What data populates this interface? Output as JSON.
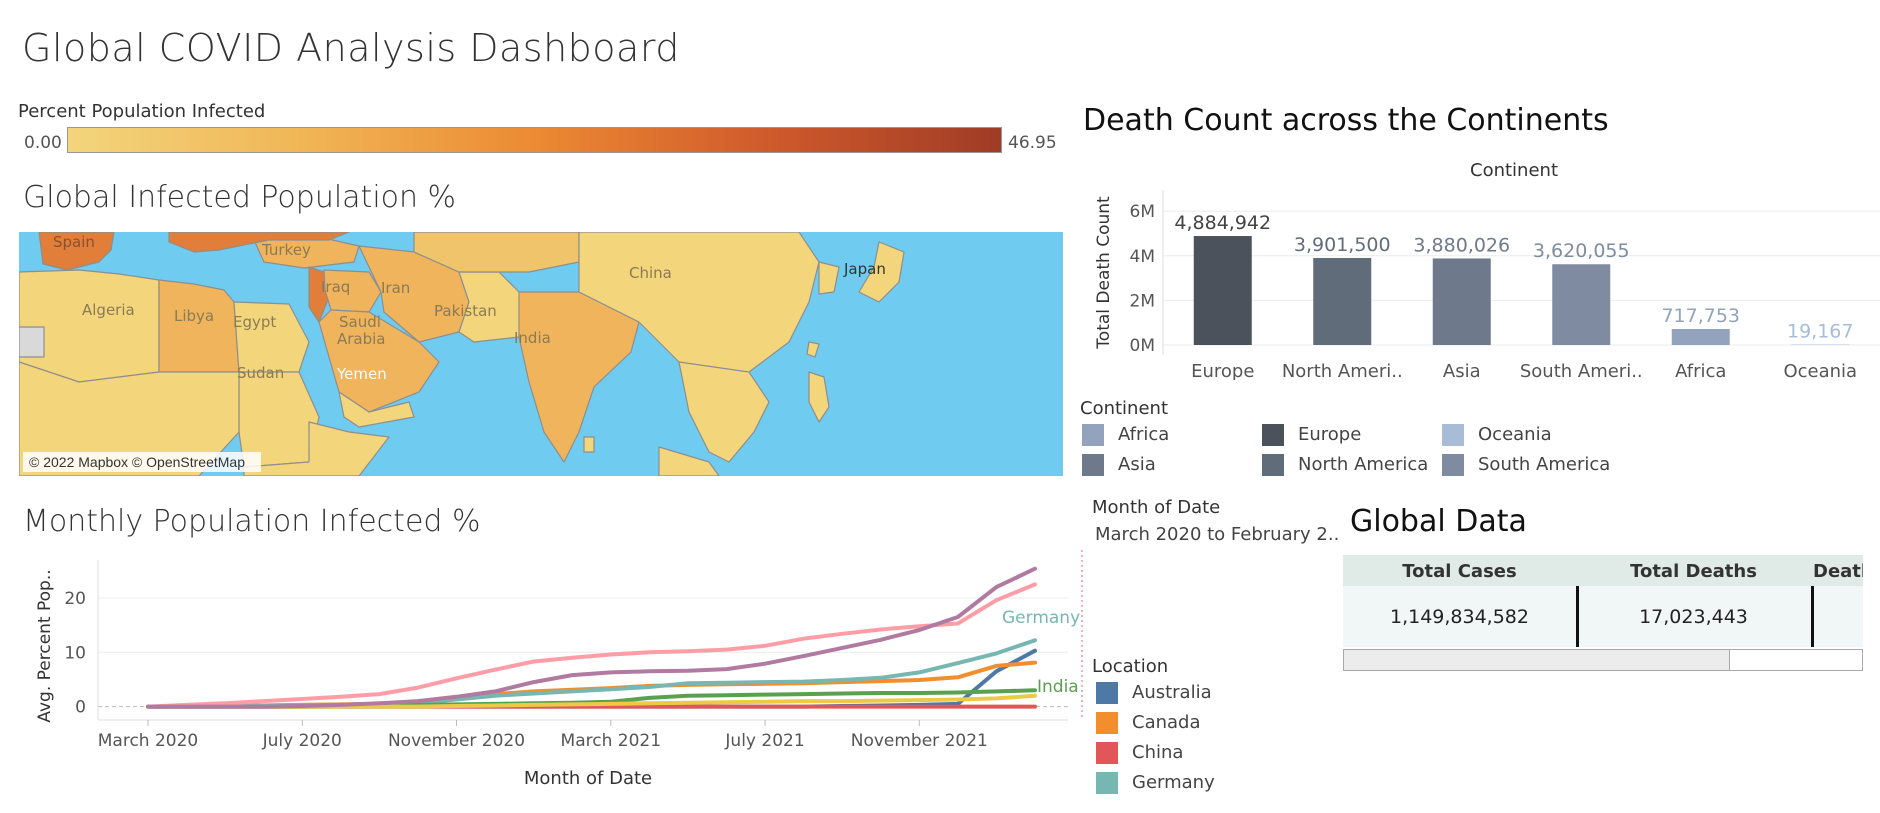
{
  "dashboard": {
    "title": "Global COVID Analysis Dashboard"
  },
  "color_legend": {
    "title": "Percent Population Infected",
    "min": "0.00",
    "max": "46.95",
    "colors": [
      "#f3d57c",
      "#f0b656",
      "#ec8a33",
      "#d05a2b",
      "#9f3c26"
    ]
  },
  "map": {
    "title": "Global Infected Population %",
    "attribution": "© 2022 Mapbox © OpenStreetMap",
    "labels": [
      "Spain",
      "Turkey",
      "Iraq",
      "Iran",
      "Algeria",
      "Libya",
      "Egypt",
      "Saudi",
      "Arabia",
      "Pakistan",
      "China",
      "Japan",
      "India",
      "Sudan",
      "Yemen"
    ],
    "colors": {
      "sea": "#6fcbef",
      "land_light": "#f3d67c",
      "land_mid": "#f0b45c",
      "land_dark": "#e07e3a",
      "border": "#9a9a9a"
    }
  },
  "bar_chart": {
    "title": "Death Count across the Continents",
    "header": "Continent",
    "ylabel": "Total Death Count",
    "value_labels": [
      "4,884,942",
      "3,901,500",
      "3,880,026",
      "3,620,055",
      "717,753",
      "19,167"
    ],
    "tick_labels": [
      "Europe",
      "North Ameri..",
      "Asia",
      "South Ameri..",
      "Africa",
      "Oceania"
    ],
    "y_ticks": [
      "0M",
      "2M",
      "4M",
      "6M"
    ],
    "colors": [
      "#4b525c",
      "#616c7b",
      "#6e7a8b",
      "#7f8ba0",
      "#93a3bd",
      "#a9bcd6"
    ]
  },
  "continent_legend": {
    "title": "Continent",
    "items": [
      {
        "label": "Africa",
        "color": "#93a3bd"
      },
      {
        "label": "Europe",
        "color": "#4b525c"
      },
      {
        "label": "Oceania",
        "color": "#a9bcd6"
      },
      {
        "label": "Asia",
        "color": "#6e7a8b"
      },
      {
        "label": "North America",
        "color": "#616c7b"
      },
      {
        "label": "South America",
        "color": "#7f8ba0"
      }
    ]
  },
  "line_chart": {
    "title": "Monthly Population Infected %",
    "xlabel": "Month of Date",
    "ylabel": "Avg. Percent Pop..",
    "x_ticks": [
      "March 2020",
      "July 2020",
      "November 2020",
      "March 2021",
      "July 2021",
      "November 2021"
    ],
    "y_ticks": [
      "0",
      "10",
      "20"
    ],
    "end_labels": [
      "Germany",
      "India"
    ]
  },
  "filter": {
    "title": "Month of Date",
    "value": "March 2020 to February 2.."
  },
  "location_legend": {
    "title": "Location",
    "items": [
      {
        "label": "Australia",
        "color": "#4e79a7"
      },
      {
        "label": "Canada",
        "color": "#f28e2b"
      },
      {
        "label": "China",
        "color": "#e15759"
      },
      {
        "label": "Germany",
        "color": "#76b7b2"
      }
    ]
  },
  "global_data": {
    "title": "Global Data",
    "headers": [
      "Total Cases",
      "Total Deaths",
      "Death"
    ],
    "values": [
      "1,149,834,582",
      "17,023,443",
      ""
    ]
  },
  "chart_data": [
    {
      "type": "bar",
      "title": "Death Count across the Continents",
      "xlabel": "Continent",
      "ylabel": "Total Death Count",
      "categories": [
        "Europe",
        "North America",
        "Asia",
        "South America",
        "Africa",
        "Oceania"
      ],
      "values": [
        4884942,
        3901500,
        3880026,
        3620055,
        717753,
        19167
      ],
      "ylim": [
        0,
        6500000
      ],
      "grid": true
    },
    {
      "type": "line",
      "title": "Monthly Population Infected %",
      "xlabel": "Month of Date",
      "ylabel": "Avg. Percent Pop..",
      "x": [
        "2020-03",
        "2020-04",
        "2020-05",
        "2020-06",
        "2020-07",
        "2020-08",
        "2020-09",
        "2020-10",
        "2020-11",
        "2020-12",
        "2021-01",
        "2021-02",
        "2021-03",
        "2021-04",
        "2021-05",
        "2021-06",
        "2021-07",
        "2021-08",
        "2021-09",
        "2021-10",
        "2021-11",
        "2021-12",
        "2022-01",
        "2022-02"
      ],
      "ylim": [
        -1,
        27
      ],
      "series": [
        {
          "name": "Australia",
          "color": "#4e79a7",
          "values": [
            0,
            0,
            0,
            0,
            0,
            0,
            0,
            0,
            0,
            0,
            0,
            0,
            0,
            0,
            0,
            0,
            0,
            0,
            0.1,
            0.2,
            0.3,
            0.5,
            6.5,
            10.3
          ]
        },
        {
          "name": "Canada",
          "color": "#f28e2b",
          "values": [
            0,
            0,
            0.1,
            0.2,
            0.3,
            0.4,
            0.5,
            0.8,
            1.5,
            2.3,
            2.8,
            3.1,
            3.4,
            3.8,
            4,
            4.1,
            4.2,
            4.3,
            4.5,
            4.7,
            4.9,
            5.4,
            7.5,
            8.1
          ]
        },
        {
          "name": "China",
          "color": "#e15759",
          "values": [
            0,
            0,
            0,
            0,
            0,
            0,
            0,
            0,
            0,
            0,
            0,
            0,
            0,
            0,
            0,
            0,
            0,
            0,
            0,
            0,
            0,
            0,
            0,
            0
          ]
        },
        {
          "name": "Germany",
          "color": "#76b7b2",
          "values": [
            0,
            0,
            0.1,
            0.2,
            0.3,
            0.3,
            0.4,
            0.7,
            1.3,
            2,
            2.4,
            2.8,
            3.2,
            3.6,
            4.3,
            4.4,
            4.5,
            4.6,
            4.9,
            5.3,
            6.3,
            8,
            9.8,
            12.2
          ]
        },
        {
          "name": "India",
          "color": "#59a14f",
          "values": [
            0,
            0,
            0,
            0,
            0,
            0.1,
            0.2,
            0.3,
            0.4,
            0.5,
            0.6,
            0.7,
            0.9,
            1.6,
            2,
            2.1,
            2.2,
            2.3,
            2.4,
            2.5,
            2.5,
            2.6,
            2.8,
            3
          ]
        },
        {
          "name": "",
          "color": "#edc948",
          "values": [
            0,
            0,
            0,
            0,
            0,
            0,
            0,
            0,
            0.1,
            0.2,
            0.3,
            0.4,
            0.5,
            0.6,
            0.7,
            0.8,
            0.9,
            1,
            1,
            1.1,
            1.2,
            1.3,
            1.5,
            2
          ]
        },
        {
          "name": "",
          "color": "#ff9da7",
          "values": [
            0,
            0.3,
            0.6,
            1,
            1.4,
            1.8,
            2.3,
            3.5,
            5.2,
            6.8,
            8.3,
            9,
            9.6,
            10,
            10.2,
            10.5,
            11.2,
            12.5,
            13.4,
            14.2,
            14.8,
            15.3,
            19.6,
            22.5
          ]
        },
        {
          "name": "",
          "color": "#b07aa1",
          "values": [
            0,
            0,
            0,
            0,
            0.1,
            0.3,
            0.6,
            1,
            1.8,
            2.8,
            4.5,
            5.8,
            6.3,
            6.5,
            6.6,
            6.9,
            7.9,
            9.3,
            10.8,
            12.3,
            14.1,
            16.5,
            22,
            25.4
          ]
        }
      ]
    }
  ]
}
